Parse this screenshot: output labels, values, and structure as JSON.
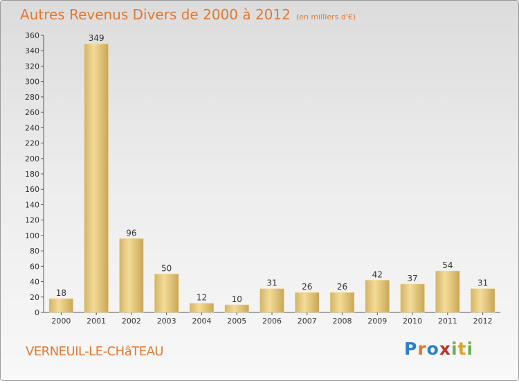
{
  "header": {
    "title": "Autres Revenus Divers de 2000 à 2012",
    "unit": "(en milliers d'€)"
  },
  "footer": {
    "commune": "VERNEUIL-LE-CHâTEAU"
  },
  "logo": {
    "letters": [
      "P",
      "r",
      "o",
      "x",
      "i",
      "t",
      "i"
    ],
    "colors": [
      "#2a7fc9",
      "#e07832",
      "#2a7fc9",
      "#c0332a",
      "#6ab04c",
      "#e0a020",
      "#6ab04c"
    ]
  },
  "chart_data": {
    "type": "bar",
    "title": "Autres Revenus Divers de 2000 à 2012",
    "subtitle": "(en milliers d'€)",
    "categories": [
      "2000",
      "2001",
      "2002",
      "2003",
      "2004",
      "2005",
      "2006",
      "2007",
      "2008",
      "2009",
      "2010",
      "2011",
      "2012"
    ],
    "values": [
      18,
      349,
      96,
      50,
      12,
      10,
      31,
      26,
      26,
      42,
      37,
      54,
      31
    ],
    "ylim": [
      0,
      360
    ],
    "yticks": [
      0,
      20,
      40,
      60,
      80,
      100,
      120,
      140,
      160,
      180,
      200,
      220,
      240,
      260,
      280,
      300,
      320,
      340,
      360
    ],
    "grid": false,
    "bar_color": "#e8cf86"
  }
}
